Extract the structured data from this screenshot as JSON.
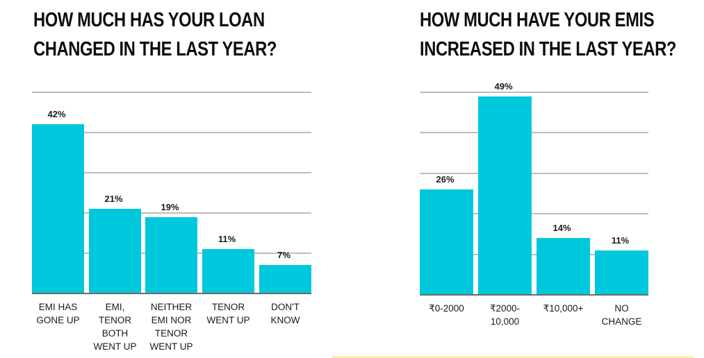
{
  "colors": {
    "bar": "#00c8dc",
    "grid": "#bdbdbd",
    "baseline": "#6b6b6b",
    "accent_rule": "#fbefb3",
    "title": "#0d0d0d"
  },
  "left": {
    "title_lines": [
      "HOW MUCH HAS YOUR LOAN",
      "CHANGED IN THE LAST YEAR?"
    ],
    "bars": [
      {
        "label": "EMI HAS\nGONE UP",
        "value": 42,
        "value_label": "42%"
      },
      {
        "label": "EMI,\nTENOR\nBOTH\nWENT UP",
        "value": 21,
        "value_label": "21%"
      },
      {
        "label": "NEITHER\nEMI NOR\nTENOR\nWENT UP",
        "value": 19,
        "value_label": "19%"
      },
      {
        "label": "TENOR\nWENT UP",
        "value": 11,
        "value_label": "11%"
      },
      {
        "label": "DON'T\nKNOW",
        "value": 7,
        "value_label": "7%"
      }
    ]
  },
  "right": {
    "title_lines": [
      "HOW MUCH HAVE YOUR EMIS",
      "INCREASED IN THE LAST YEAR?"
    ],
    "bars": [
      {
        "label": "₹0-2000",
        "value": 26,
        "value_label": "26%"
      },
      {
        "label": "₹2000-\n10,000",
        "value": 49,
        "value_label": "49%"
      },
      {
        "label": "₹10,000+",
        "value": 14,
        "value_label": "14%"
      },
      {
        "label": "NO\nCHANGE",
        "value": 11,
        "value_label": "11%"
      }
    ]
  },
  "chart_data": [
    {
      "type": "bar",
      "title": "HOW MUCH HAS YOUR LOAN CHANGED IN THE LAST YEAR?",
      "categories": [
        "EMI HAS GONE UP",
        "EMI, TENOR BOTH WENT UP",
        "NEITHER EMI NOR TENOR WENT UP",
        "TENOR WENT UP",
        "DON'T KNOW"
      ],
      "values": [
        42,
        21,
        19,
        11,
        7
      ],
      "data_labels": [
        "42%",
        "21%",
        "19%",
        "11%",
        "7%"
      ],
      "xlabel": "",
      "ylabel": "",
      "ylim": [
        0,
        50
      ],
      "grid": true,
      "grid_step": 10,
      "y_axis_ticks_shown": false,
      "legend": null
    },
    {
      "type": "bar",
      "title": "HOW MUCH HAVE YOUR EMIS INCREASED IN THE LAST YEAR?",
      "categories": [
        "₹0-2000",
        "₹2000-10,000",
        "₹10,000+",
        "NO CHANGE"
      ],
      "values": [
        26,
        49,
        14,
        11
      ],
      "data_labels": [
        "26%",
        "49%",
        "14%",
        "11%"
      ],
      "xlabel": "",
      "ylabel": "",
      "ylim": [
        0,
        50
      ],
      "grid": true,
      "grid_step": 10,
      "y_axis_ticks_shown": false,
      "legend": null
    }
  ]
}
